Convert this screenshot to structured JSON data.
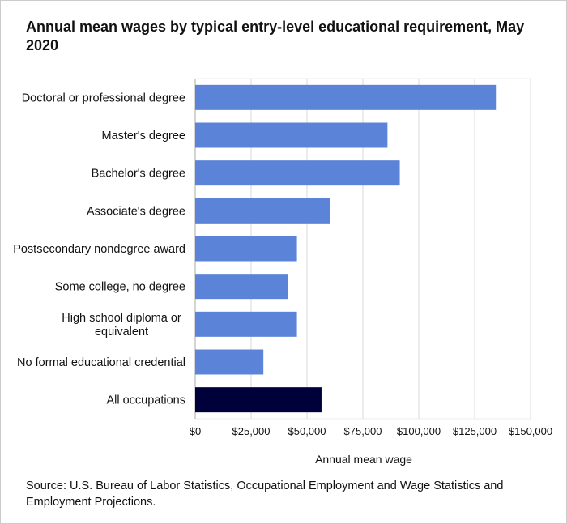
{
  "chart_data": {
    "type": "bar",
    "orientation": "horizontal",
    "title": "Annual mean wages by typical entry-level educational requirement, May 2020",
    "xlabel": "Annual mean wage",
    "ylabel": "",
    "xlim": [
      0,
      150000
    ],
    "x_ticks": [
      "$0",
      "$25,000",
      "$50,000",
      "$75,000",
      "$100,000",
      "$125,000",
      "$150,000"
    ],
    "x_tick_values": [
      0,
      25000,
      50000,
      75000,
      100000,
      125000,
      150000
    ],
    "grid": "vertical",
    "categories": [
      "Doctoral or professional degree",
      "Master's degree",
      "Bachelor's degree",
      "Associate's degree",
      "Postsecondary nondegree award",
      "Some college, no degree",
      "High school diploma or equivalent",
      "No formal educational credential",
      "All occupations"
    ],
    "category_lines": [
      [
        "Doctoral or professional degree"
      ],
      [
        "Master's degree"
      ],
      [
        "Bachelor's degree"
      ],
      [
        "Associate's degree"
      ],
      [
        "Postsecondary nondegree award"
      ],
      [
        "Some college, no degree"
      ],
      [
        "High school diploma or",
        "equivalent"
      ],
      [
        "No formal educational credential"
      ],
      [
        "All occupations"
      ]
    ],
    "values": [
      134500,
      86000,
      91500,
      60500,
      45500,
      41500,
      45500,
      30500,
      56500
    ],
    "colors": {
      "default_bar": "#5b84d9",
      "highlight_bar": "#00003a",
      "gridline": "#d9d9d9",
      "axis": "#aaaaaa"
    },
    "highlight_category": "All occupations"
  },
  "source": "Source: U.S. Bureau of Labor Statistics, Occupational Employment and Wage Statistics and Employment Projections."
}
